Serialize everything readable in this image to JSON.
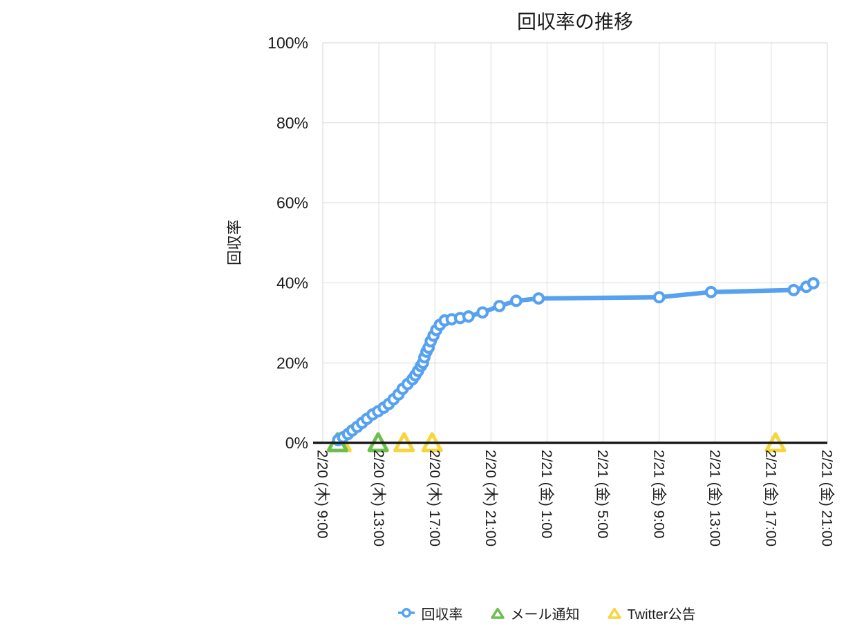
{
  "page": {
    "background": "#ffffff"
  },
  "chart": {
    "title": "回収率の推移",
    "y_axis_title": "回収率",
    "legend": [
      {
        "label": "回収率",
        "marker": "circle-line",
        "color": "#56A2F1"
      },
      {
        "label": "メール通知",
        "marker": "triangle",
        "color": "#6CBF4C"
      },
      {
        "label": "Twitter公告",
        "marker": "triangle",
        "color": "#F5D63D"
      }
    ]
  },
  "chart_data": {
    "type": "line",
    "title": "回収率の推移",
    "xlabel": "",
    "ylabel": "回収率",
    "x_unit": "hours since 2/20 (木) 9:00",
    "xlim": [
      0,
      36
    ],
    "ylim": [
      0,
      100
    ],
    "grid": true,
    "legend_position": "bottom",
    "x_tick_hours": [
      0,
      4,
      8,
      12,
      16,
      20,
      24,
      28,
      32,
      36
    ],
    "x_tick_labels": [
      "2/20 (木) 9:00",
      "2/20 (木) 13:00",
      "2/20 (木) 17:00",
      "2/20 (木) 21:00",
      "2/21 (金) 1:00",
      "2/21 (金) 5:00",
      "2/21 (金) 9:00",
      "2/21 (金) 13:00",
      "2/21 (金) 17:00",
      "2/21 (金) 21:00"
    ],
    "y_tick_values": [
      0,
      20,
      40,
      60,
      80,
      100
    ],
    "y_tick_labels": [
      "0%",
      "20%",
      "40%",
      "60%",
      "80%",
      "100%"
    ],
    "series": [
      {
        "name": "回収率",
        "style": "line-with-open-circles",
        "color": "#56A2F1",
        "points": [
          [
            1.1,
            0.7
          ],
          [
            1.45,
            1.4
          ],
          [
            1.8,
            2.2
          ],
          [
            2.1,
            3.1
          ],
          [
            2.45,
            4.0
          ],
          [
            2.8,
            5.0
          ],
          [
            3.15,
            6.0
          ],
          [
            3.55,
            7.1
          ],
          [
            3.95,
            7.9
          ],
          [
            4.35,
            8.8
          ],
          [
            4.7,
            9.7
          ],
          [
            5.05,
            10.9
          ],
          [
            5.4,
            12.1
          ],
          [
            5.7,
            13.5
          ],
          [
            6.05,
            14.7
          ],
          [
            6.4,
            15.9
          ],
          [
            6.6,
            16.9
          ],
          [
            6.8,
            18.0
          ],
          [
            7.0,
            19.2
          ],
          [
            7.15,
            20.0
          ],
          [
            7.25,
            21.4
          ],
          [
            7.4,
            22.8
          ],
          [
            7.55,
            23.8
          ],
          [
            7.7,
            25.4
          ],
          [
            7.9,
            26.8
          ],
          [
            8.1,
            28.2
          ],
          [
            8.35,
            29.5
          ],
          [
            8.7,
            30.6
          ],
          [
            9.2,
            30.9
          ],
          [
            9.8,
            31.2
          ],
          [
            10.4,
            31.6
          ],
          [
            11.4,
            32.6
          ],
          [
            12.6,
            34.2
          ],
          [
            13.8,
            35.5
          ],
          [
            15.4,
            36.1
          ],
          [
            24.0,
            36.4
          ],
          [
            27.7,
            37.7
          ],
          [
            33.6,
            38.2
          ],
          [
            34.5,
            39.0
          ],
          [
            35.0,
            39.9
          ]
        ]
      },
      {
        "name": "メール通知",
        "style": "open-triangles-on-baseline",
        "color": "#6CBF4C",
        "points": [
          [
            1.05,
            0
          ],
          [
            3.95,
            0
          ]
        ]
      },
      {
        "name": "Twitter公告",
        "style": "open-triangles-on-baseline",
        "color": "#F5D63D",
        "points": [
          [
            1.3,
            0
          ],
          [
            5.8,
            0
          ],
          [
            7.8,
            0
          ],
          [
            32.3,
            0
          ]
        ]
      }
    ]
  }
}
